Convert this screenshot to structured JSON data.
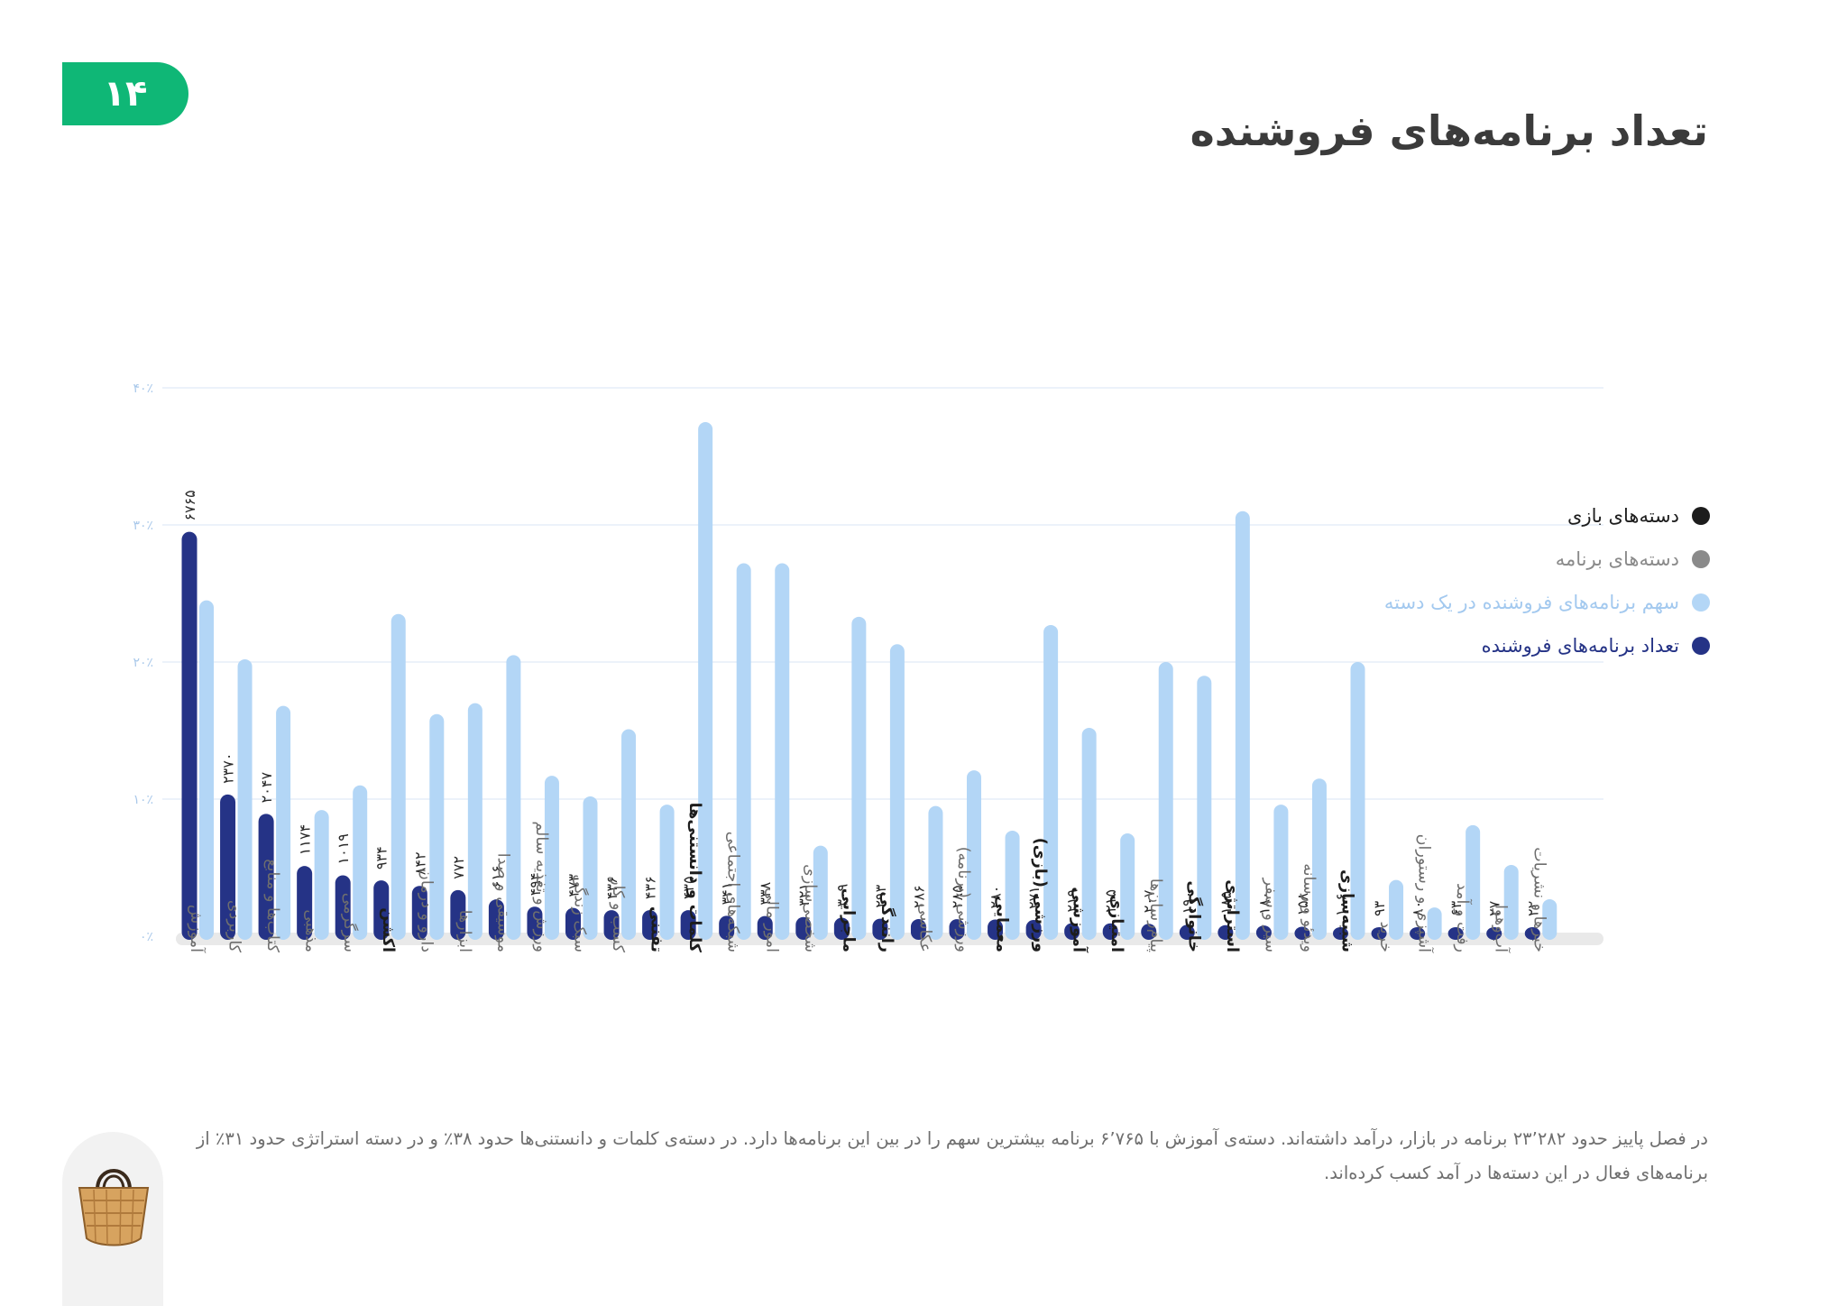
{
  "page_number": "۱۴",
  "title": "تعداد برنامه‌های فروشنده",
  "legend": [
    {
      "label": "دسته‌های بازی",
      "color": "#1d1d1d"
    },
    {
      "label": "دسته‌های برنامه",
      "color": "#8a8a8a"
    },
    {
      "label": "سهم برنامه‌های فروشنده در یک دسته",
      "color": "#b3d6f6"
    },
    {
      "label": "تعداد برنامه‌های فروشنده",
      "color": "#253386"
    }
  ],
  "caption": "در فصل پاییز حدود ۲۳٬۲۸۲ برنامه در بازار، درآمد داشته‌اند. دسته‌ی آموزش با ۶٬۷۶۵ برنامه بیشترین سهم را در بین این برنامه‌ها دارد. در دسته‌ی کلمات و دانستنی‌ها حدود ۳۸٪ و در دسته استراتژی حدود ۳۱٪ از برنامه‌های فعال در این دسته‌ها در آمد کسب کرده‌اند.",
  "colors": {
    "count_bar": "#253386",
    "share_bar": "#b3d6f6",
    "game_label": "#1d1d1d",
    "app_label": "#6e6e6e",
    "axis_label": "#a9c8ea",
    "accent": "#0fb776"
  },
  "icons": [
    "basket-icon"
  ],
  "chart_data": {
    "type": "bar",
    "ylim": [
      0,
      40
    ],
    "y_ticks": [
      "۰٪",
      "۱۰٪",
      "۲۰٪",
      "۳۰٪",
      "۴۰٪"
    ],
    "y_tick_values": [
      0,
      10,
      20,
      30,
      40
    ],
    "legend_position": "right",
    "grid": true,
    "categories": [
      {
        "label": "آموزش",
        "group": "app"
      },
      {
        "label": "کاربردی",
        "group": "app"
      },
      {
        "label": "کتاب‌ها و منابع",
        "group": "app"
      },
      {
        "label": "مذهبی",
        "group": "app"
      },
      {
        "label": "سرگرمی",
        "group": "app"
      },
      {
        "label": "اکشن",
        "group": "game"
      },
      {
        "label": "دارو و درمان",
        "group": "app"
      },
      {
        "label": "ابزارها",
        "group": "app"
      },
      {
        "label": "موسیقی و صدا",
        "group": "app"
      },
      {
        "label": "ورزش و تغذیه سالم",
        "group": "app"
      },
      {
        "label": "سبک زندگی",
        "group": "app"
      },
      {
        "label": "کسب و کار",
        "group": "app"
      },
      {
        "label": "تفننی",
        "group": "game"
      },
      {
        "label": "کلمات و دانستنی‌ها",
        "group": "game"
      },
      {
        "label": "شبکه‌های اجتماعی",
        "group": "app"
      },
      {
        "label": "امور مالی",
        "group": "app"
      },
      {
        "label": "شخصی‌سازی",
        "group": "app"
      },
      {
        "label": "ماجرایی",
        "group": "game"
      },
      {
        "label": "رانندگی",
        "group": "game"
      },
      {
        "label": "عکاسی",
        "group": "app"
      },
      {
        "label": "ورزشی (برنامه)",
        "group": "app"
      },
      {
        "label": "معمایی",
        "group": "game"
      },
      {
        "label": "ورزشی (بازی)",
        "group": "game"
      },
      {
        "label": "آموزشی",
        "group": "game"
      },
      {
        "label": "امتیازی",
        "group": "game"
      },
      {
        "label": "پیام‌رسان‌ها",
        "group": "app"
      },
      {
        "label": "خانوادگی",
        "group": "game"
      },
      {
        "label": "استراتژی",
        "group": "game"
      },
      {
        "label": "سیر و سفر",
        "group": "app"
      },
      {
        "label": "ویدئو و رسانه",
        "group": "app"
      },
      {
        "label": "شبیه‌سازی",
        "group": "game"
      },
      {
        "label": "خرید",
        "group": "app"
      },
      {
        "label": "آشپزی و رستوران",
        "group": "app"
      },
      {
        "label": "رفت و آمد",
        "group": "app"
      },
      {
        "label": "آب‌وهوا",
        "group": "app"
      },
      {
        "label": "خبرها و نشریات",
        "group": "app"
      }
    ],
    "series": [
      {
        "name": "تعداد برنامه‌های فروشنده",
        "value_labels": [
          "۶۷۶۵",
          "۲۳۷۰",
          "۲۰۴۷",
          "۱۱۷۴",
          "۱۰۱۹",
          "۹۳۴",
          "۸۴۲",
          "۷۷۲",
          "۶۱۶",
          "۴۹۴",
          "۴۷۳",
          "۴۳۶",
          "۴۳۶",
          "۴۳۵",
          "۳۴۱",
          "۳۳۸",
          "۳۲۱",
          "۳۰۹",
          "۲۹۳",
          "۲۸۶",
          "۲۸۵",
          "۲۸۰",
          "۲۷۱",
          "۲۱۹",
          "۲۱۵",
          "۲۰۷",
          "۱۹۰",
          "۱۸۵",
          "۱۸۰",
          "۱۵۸",
          "۱۰۶",
          "۹۳",
          "۸۰",
          "۶۳",
          "۲۷",
          "۲۲"
        ],
        "values": [
          6765,
          2370,
          2047,
          1174,
          1019,
          934,
          842,
          772,
          616,
          494,
          473,
          436,
          436,
          435,
          341,
          338,
          321,
          309,
          293,
          286,
          285,
          280,
          271,
          219,
          215,
          207,
          190,
          185,
          180,
          158,
          106,
          93,
          80,
          63,
          27,
          22
        ]
      },
      {
        "name": "سهم برنامه‌های فروشنده در یک دسته",
        "values": [
          24.5,
          20.2,
          16.8,
          9.2,
          11,
          23.5,
          16.2,
          17,
          20.5,
          11.7,
          10.2,
          15.1,
          9.6,
          37.5,
          27.2,
          27.2,
          6.6,
          23.3,
          21.3,
          9.5,
          12.1,
          7.7,
          22.7,
          15.2,
          7.5,
          20,
          19,
          31,
          9.6,
          11.5,
          20,
          4.1,
          2.1,
          8.1,
          5.2,
          2.7
        ]
      }
    ]
  }
}
